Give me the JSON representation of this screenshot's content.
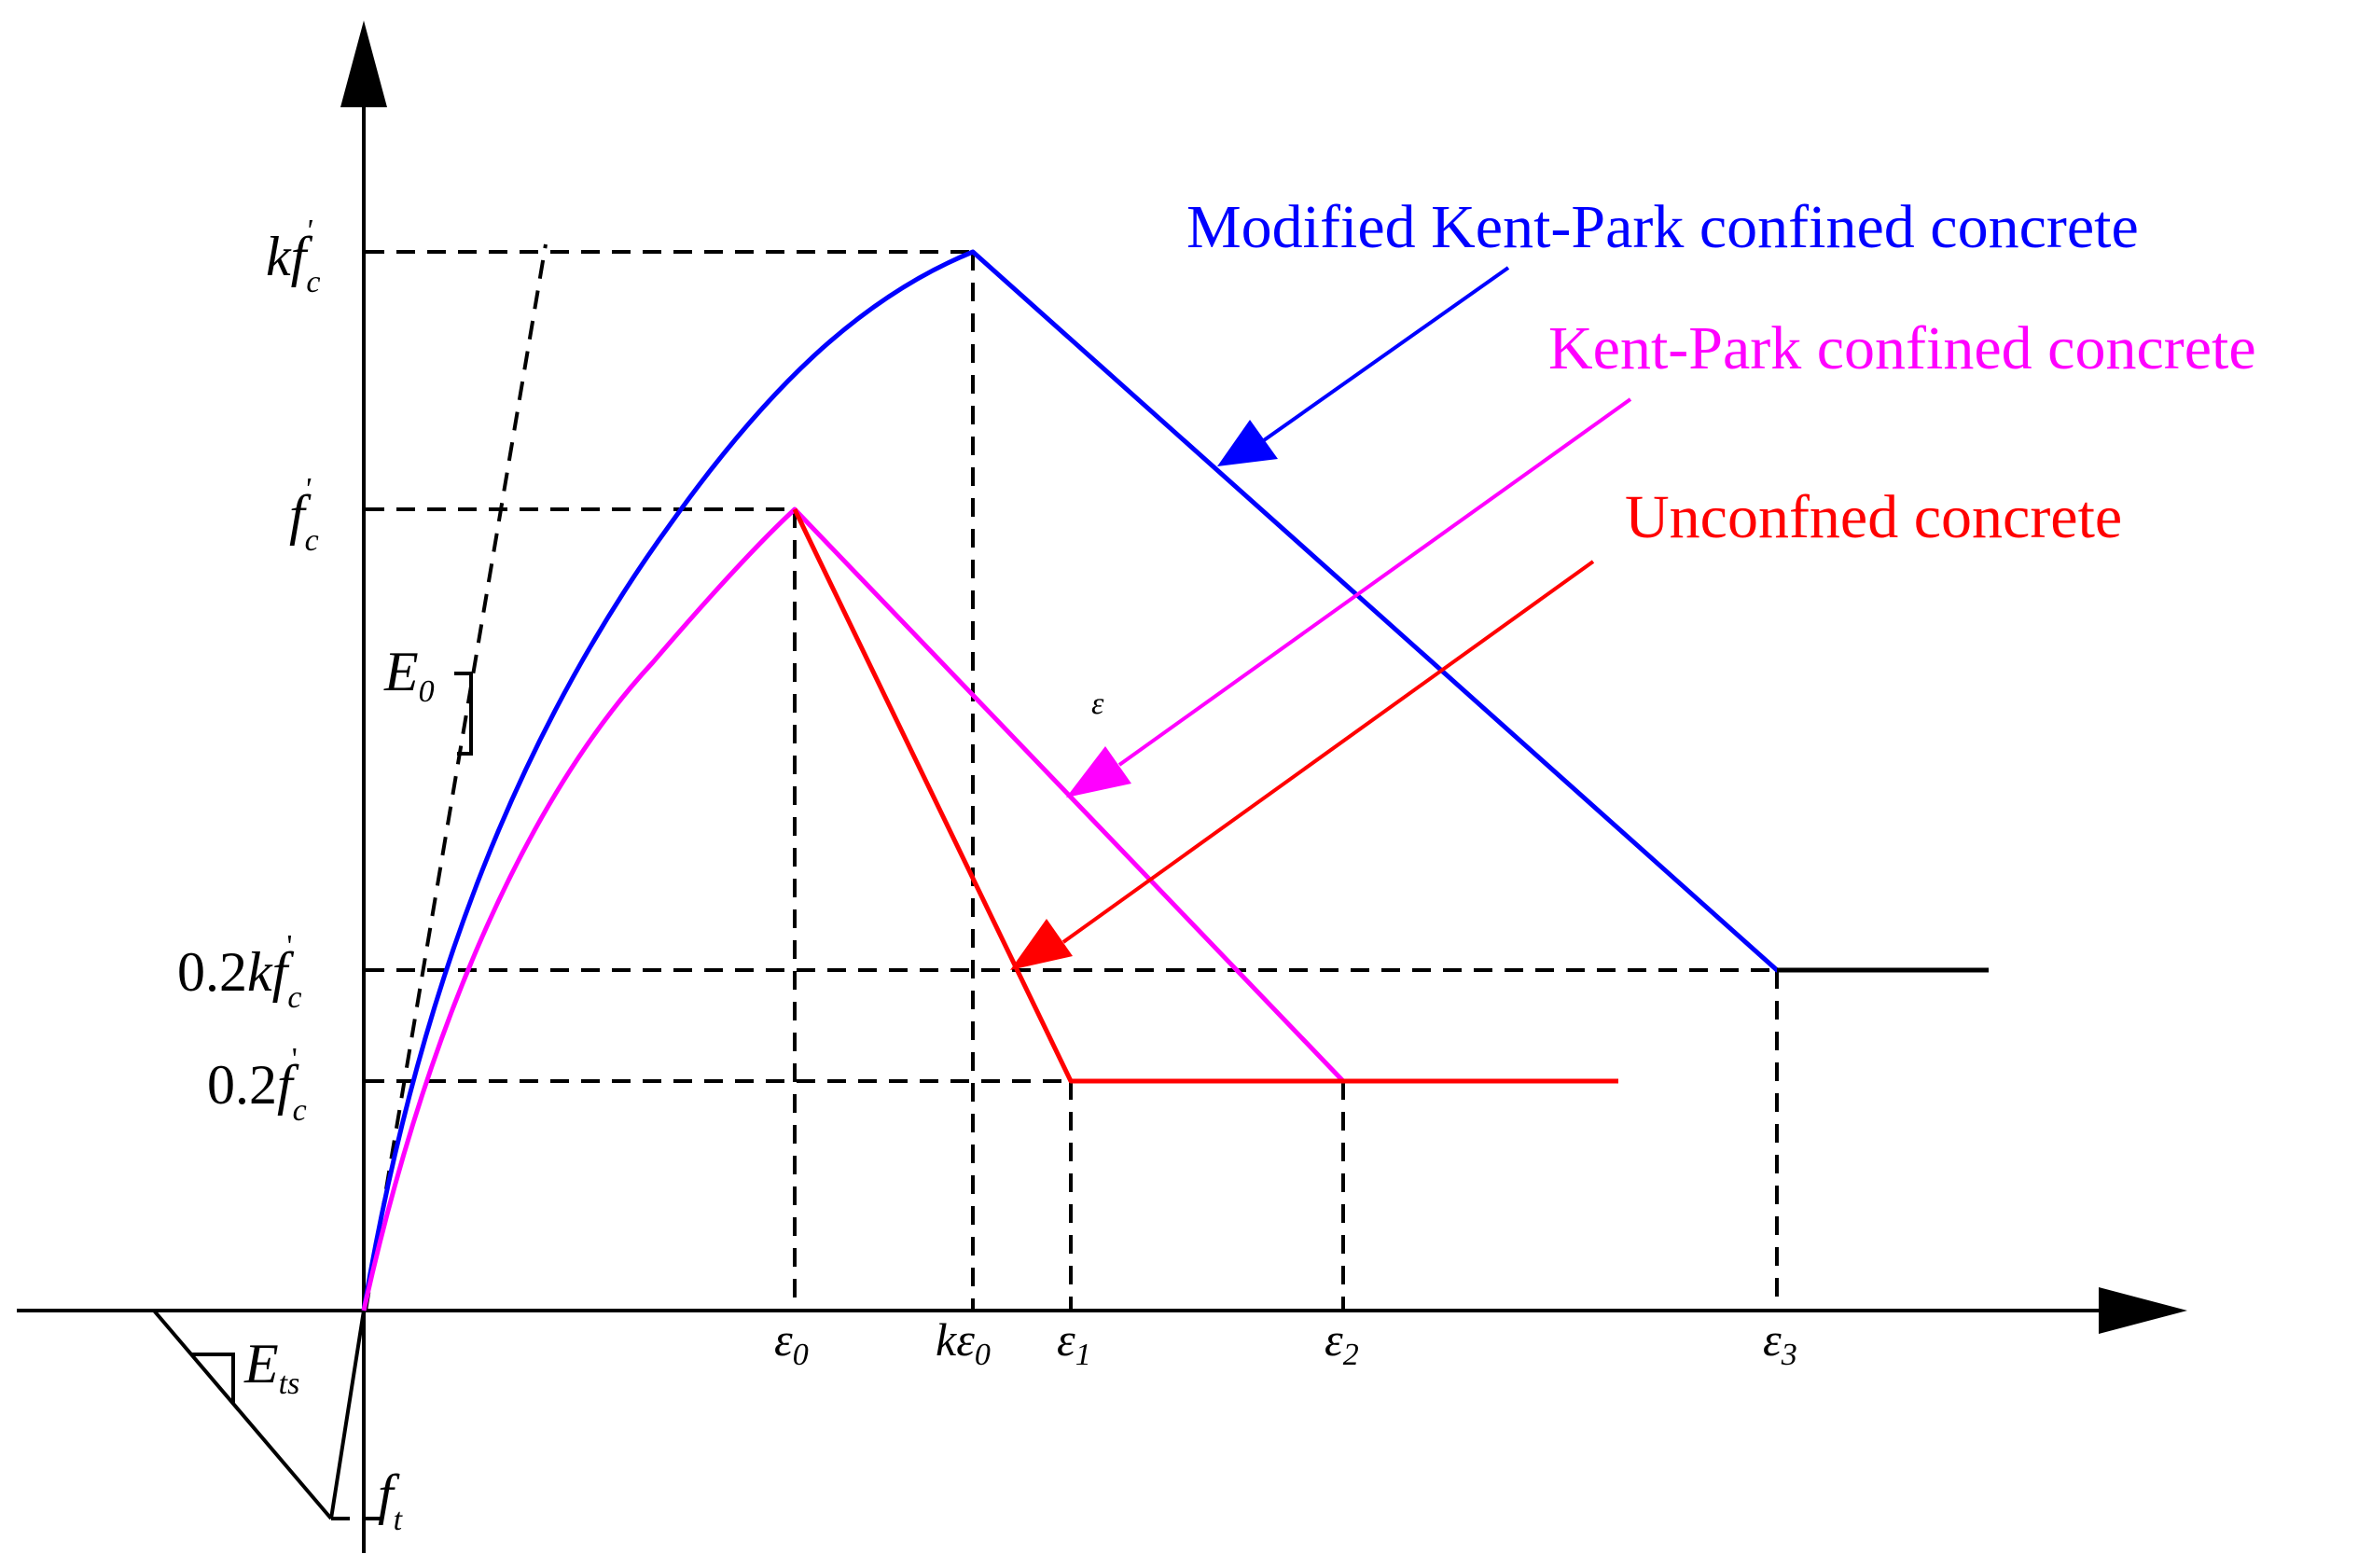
{
  "colors": {
    "modified_kent_park": "#0000ff",
    "kent_park": "#ff00ff",
    "unconfined": "#ff0000",
    "axes": "#000000",
    "guides": "#000000"
  },
  "legend": {
    "modified_kent_park": "Modified Kent-Park confined concrete",
    "kent_park": "Kent-Park confined concrete",
    "unconfined": "Unconfned concrete"
  },
  "y_labels": {
    "kfc": {
      "main": "kf",
      "sub": "c",
      "sup": "'"
    },
    "fc": {
      "main": "f",
      "sub": "c",
      "sup": "'"
    },
    "p2kfc": {
      "pre": "0.2",
      "main": "kf",
      "sub": "c",
      "sup": "'"
    },
    "p2fc": {
      "pre": "0.2",
      "main": "f",
      "sub": "c",
      "sup": "'"
    },
    "ft": {
      "main": "f",
      "sub": "t"
    }
  },
  "x_labels": {
    "e0": {
      "main": "ε",
      "sub": "0"
    },
    "ke0": {
      "pre": "k",
      "main": "ε",
      "sub": "0"
    },
    "e1": {
      "main": "ε",
      "sub": "1"
    },
    "e2": {
      "main": "ε",
      "sub": "2"
    },
    "e3": {
      "main": "ε",
      "sub": "3"
    }
  },
  "annotations": {
    "E0": {
      "main": "E",
      "sub": "0"
    },
    "Ets": {
      "main": "E",
      "sub": "ts"
    },
    "eps_mark": "ε"
  }
}
